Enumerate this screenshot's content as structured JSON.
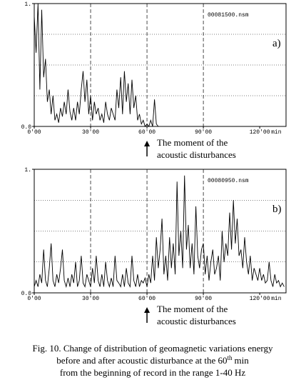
{
  "chart_data": [
    {
      "type": "line",
      "panel_label": "a)",
      "annotation": "00081500.nsm",
      "color": "#000000",
      "xlim": [
        0,
        134
      ],
      "ylim": [
        0,
        1
      ],
      "xticks": [
        {
          "value": 0,
          "label": "0'00"
        },
        {
          "value": 30,
          "label": "30'00"
        },
        {
          "value": 60,
          "label": "60'00"
        },
        {
          "value": 90,
          "label": "90'00"
        },
        {
          "value": 120,
          "label": "120'00"
        }
      ],
      "xlabel": "min",
      "yticks": [
        {
          "value": 0,
          "label": "0.0"
        },
        {
          "value": 1,
          "label": "1."
        }
      ],
      "ygrid": [
        0.25,
        0.5,
        0.75
      ],
      "xgrid": [
        30,
        60,
        90
      ],
      "arrow_x": 60,
      "arrow_text": [
        "The moment of the",
        "acoustic disturbances"
      ],
      "x": [
        0,
        1,
        2,
        3,
        4,
        5,
        6,
        7,
        8,
        9,
        10,
        11,
        12,
        13,
        14,
        15,
        16,
        17,
        18,
        19,
        20,
        21,
        22,
        23,
        24,
        25,
        26,
        27,
        28,
        29,
        30,
        31,
        32,
        33,
        34,
        35,
        36,
        37,
        38,
        39,
        40,
        41,
        42,
        43,
        44,
        45,
        46,
        47,
        48,
        49,
        50,
        51,
        52,
        53,
        54,
        55,
        56,
        57,
        58,
        59,
        60,
        61,
        62,
        63,
        64,
        65,
        66
      ],
      "values": [
        0.9,
        0.6,
        1.0,
        0.3,
        0.95,
        0.4,
        0.55,
        0.2,
        0.3,
        0.1,
        0.25,
        0.05,
        0.1,
        0.03,
        0.15,
        0.08,
        0.2,
        0.1,
        0.3,
        0.12,
        0.05,
        0.15,
        0.05,
        0.2,
        0.1,
        0.3,
        0.45,
        0.2,
        0.38,
        0.1,
        0.25,
        0.05,
        0.2,
        0.1,
        0.15,
        0.05,
        0.1,
        0.03,
        0.2,
        0.1,
        0.05,
        0.15,
        0.1,
        0.05,
        0.3,
        0.15,
        0.4,
        0.1,
        0.45,
        0.2,
        0.35,
        0.1,
        0.38,
        0.15,
        0.25,
        0.05,
        0.1,
        0.02,
        0.05,
        0.0,
        0.02,
        0.0,
        0.05,
        0.0,
        0.22,
        0.02,
        0.0
      ]
    },
    {
      "type": "line",
      "panel_label": "b)",
      "annotation": "00080950.nsm",
      "color": "#000000",
      "xlim": [
        0,
        134
      ],
      "ylim": [
        0,
        1
      ],
      "xticks": [
        {
          "value": 0,
          "label": "0'00"
        },
        {
          "value": 30,
          "label": "30'00"
        },
        {
          "value": 60,
          "label": "60'00"
        },
        {
          "value": 90,
          "label": "90'00"
        },
        {
          "value": 120,
          "label": "120'00"
        }
      ],
      "xlabel": "min",
      "yticks": [
        {
          "value": 0,
          "label": "0.0"
        },
        {
          "value": 1,
          "label": "1."
        }
      ],
      "ygrid": [
        0.25,
        0.5,
        0.75
      ],
      "xgrid": [
        30,
        60,
        90
      ],
      "arrow_x": 60,
      "arrow_text": [
        "The moment of the",
        "acoustic disturbances"
      ],
      "x": [
        0,
        1,
        2,
        3,
        4,
        5,
        6,
        7,
        8,
        9,
        10,
        11,
        12,
        13,
        14,
        15,
        16,
        17,
        18,
        19,
        20,
        21,
        22,
        23,
        24,
        25,
        26,
        27,
        28,
        29,
        30,
        31,
        32,
        33,
        34,
        35,
        36,
        37,
        38,
        39,
        40,
        41,
        42,
        43,
        44,
        45,
        46,
        47,
        48,
        49,
        50,
        51,
        52,
        53,
        54,
        55,
        56,
        57,
        58,
        59,
        60,
        61,
        62,
        63,
        64,
        65,
        66,
        67,
        68,
        69,
        70,
        71,
        72,
        73,
        74,
        75,
        76,
        77,
        78,
        79,
        80,
        81,
        82,
        83,
        84,
        85,
        86,
        87,
        88,
        89,
        90,
        91,
        92,
        93,
        94,
        95,
        96,
        97,
        98,
        99,
        100,
        101,
        102,
        103,
        104,
        105,
        106,
        107,
        108,
        109,
        110,
        111,
        112,
        113,
        114,
        115,
        116,
        117,
        118,
        119,
        120,
        121,
        122,
        123,
        124,
        125,
        126,
        127,
        128,
        129,
        130,
        131,
        132,
        133
      ],
      "values": [
        0.05,
        0.1,
        0.05,
        0.15,
        0.08,
        0.35,
        0.1,
        0.05,
        0.2,
        0.4,
        0.1,
        0.05,
        0.15,
        0.08,
        0.2,
        0.35,
        0.1,
        0.05,
        0.12,
        0.05,
        0.15,
        0.08,
        0.25,
        0.05,
        0.1,
        0.3,
        0.08,
        0.05,
        0.15,
        0.1,
        0.05,
        0.2,
        0.08,
        0.3,
        0.1,
        0.05,
        0.15,
        0.05,
        0.25,
        0.1,
        0.05,
        0.12,
        0.05,
        0.3,
        0.1,
        0.08,
        0.05,
        0.15,
        0.05,
        0.2,
        0.08,
        0.05,
        0.3,
        0.1,
        0.05,
        0.15,
        0.05,
        0.1,
        0.08,
        0.12,
        0.05,
        0.15,
        0.08,
        0.3,
        0.1,
        0.45,
        0.2,
        0.35,
        0.6,
        0.15,
        0.3,
        0.1,
        0.45,
        0.2,
        0.4,
        0.15,
        0.9,
        0.3,
        0.5,
        0.2,
        0.95,
        0.35,
        0.55,
        0.2,
        0.4,
        0.15,
        0.7,
        0.3,
        0.2,
        0.35,
        0.4,
        0.15,
        0.3,
        0.1,
        0.25,
        0.35,
        0.15,
        0.2,
        0.3,
        0.1,
        0.5,
        0.25,
        0.4,
        0.3,
        0.65,
        0.35,
        0.75,
        0.4,
        0.6,
        0.3,
        0.35,
        0.2,
        0.45,
        0.25,
        0.15,
        0.3,
        0.1,
        0.2,
        0.15,
        0.1,
        0.2,
        0.1,
        0.15,
        0.08,
        0.1,
        0.25,
        0.1,
        0.05,
        0.15,
        0.08,
        0.1,
        0.05,
        0.08,
        0.05
      ]
    }
  ],
  "caption": {
    "line1": "Fig. 10. Change of distribution of geomagnetic variations energy",
    "line2_before": "before and after  acoustic disturbance at the 60",
    "line2_sup": "th",
    "line2_after": "min",
    "line3": "from the beginning of record in the range 1-40 Hz"
  }
}
